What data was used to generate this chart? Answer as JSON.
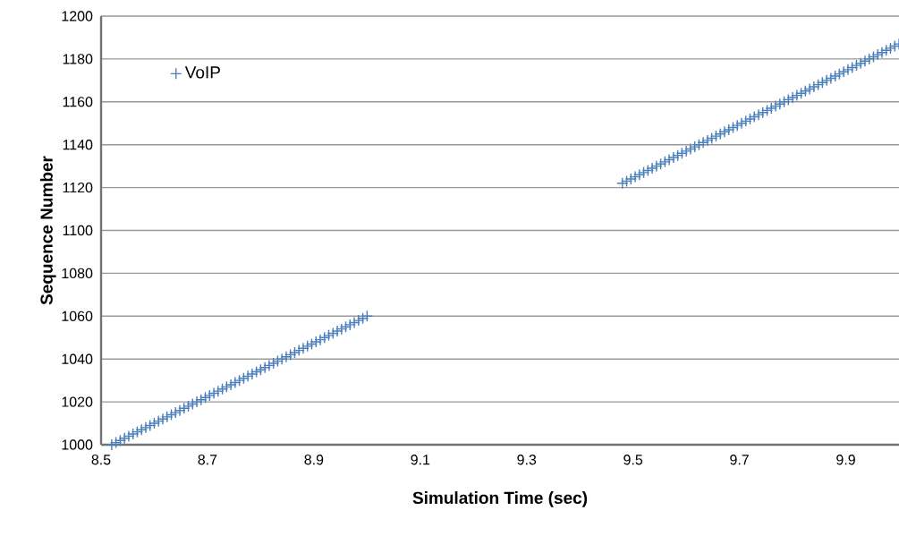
{
  "chart_data": {
    "type": "scatter",
    "xlabel": "Simulation Time (sec)",
    "ylabel": "Sequence Number",
    "x": [
      8.52,
      8.528,
      8.536,
      8.544,
      8.552,
      8.56,
      8.568,
      8.576,
      8.584,
      8.592,
      8.6,
      8.608,
      8.616,
      8.624,
      8.632,
      8.64,
      8.648,
      8.656,
      8.664,
      8.672,
      8.68,
      8.688,
      8.696,
      8.704,
      8.712,
      8.72,
      8.728,
      8.736,
      8.744,
      8.752,
      8.76,
      8.768,
      8.776,
      8.784,
      8.792,
      8.8,
      8.808,
      8.816,
      8.824,
      8.832,
      8.84,
      8.848,
      8.856,
      8.864,
      8.872,
      8.88,
      8.888,
      8.896,
      8.904,
      8.912,
      8.92,
      8.928,
      8.936,
      8.944,
      8.952,
      8.96,
      8.968,
      8.976,
      8.984,
      8.992,
      9.0,
      9.48,
      9.488,
      9.496,
      9.504,
      9.512,
      9.52,
      9.528,
      9.536,
      9.544,
      9.552,
      9.56,
      9.568,
      9.576,
      9.584,
      9.592,
      9.6,
      9.608,
      9.616,
      9.624,
      9.632,
      9.64,
      9.648,
      9.656,
      9.664,
      9.672,
      9.68,
      9.688,
      9.696,
      9.704,
      9.712,
      9.72,
      9.728,
      9.736,
      9.744,
      9.752,
      9.76,
      9.768,
      9.776,
      9.784,
      9.792,
      9.8,
      9.808,
      9.816,
      9.824,
      9.832,
      9.84,
      9.848,
      9.856,
      9.864,
      9.872,
      9.88,
      9.888,
      9.896,
      9.904,
      9.912,
      9.92,
      9.928,
      9.936,
      9.944,
      9.952,
      9.96,
      9.968,
      9.976,
      9.984,
      9.992,
      10.0
    ],
    "series": [
      {
        "name": "VoIP",
        "color": "#4a7ebb",
        "values": [
          1000,
          1001,
          1002,
          1003,
          1004,
          1005,
          1006,
          1007,
          1008,
          1009,
          1010,
          1011,
          1012,
          1013,
          1014,
          1015,
          1016,
          1017,
          1018,
          1019,
          1020,
          1021,
          1022,
          1023,
          1024,
          1025,
          1026,
          1027,
          1028,
          1029,
          1030,
          1031,
          1032,
          1033,
          1034,
          1035,
          1036,
          1037,
          1038,
          1039,
          1040,
          1041,
          1042,
          1043,
          1044,
          1045,
          1046,
          1047,
          1048,
          1049,
          1050,
          1051,
          1052,
          1053,
          1054,
          1055,
          1056,
          1057,
          1058,
          1059,
          1060,
          1122,
          1123,
          1124,
          1125,
          1126,
          1127,
          1128,
          1129,
          1130,
          1131,
          1132,
          1133,
          1134,
          1135,
          1136,
          1137,
          1138,
          1139,
          1140,
          1141,
          1142,
          1143,
          1144,
          1145,
          1146,
          1147,
          1148,
          1149,
          1150,
          1151,
          1152,
          1153,
          1154,
          1155,
          1156,
          1157,
          1158,
          1159,
          1160,
          1161,
          1162,
          1163,
          1164,
          1165,
          1166,
          1167,
          1168,
          1169,
          1170,
          1171,
          1172,
          1173,
          1174,
          1175,
          1176,
          1177,
          1178,
          1179,
          1180,
          1181,
          1182,
          1183,
          1184,
          1185,
          1186,
          1187
        ]
      }
    ],
    "xlim": [
      8.5,
      10.0
    ],
    "ylim": [
      1000,
      1200
    ],
    "xticks": [
      8.5,
      8.7,
      8.9,
      9.1,
      9.3,
      9.5,
      9.7,
      9.9
    ],
    "yticks": [
      1000,
      1020,
      1040,
      1060,
      1080,
      1100,
      1120,
      1140,
      1160,
      1180,
      1200
    ],
    "grid": "y",
    "legend": "top left",
    "marker": "cross"
  }
}
